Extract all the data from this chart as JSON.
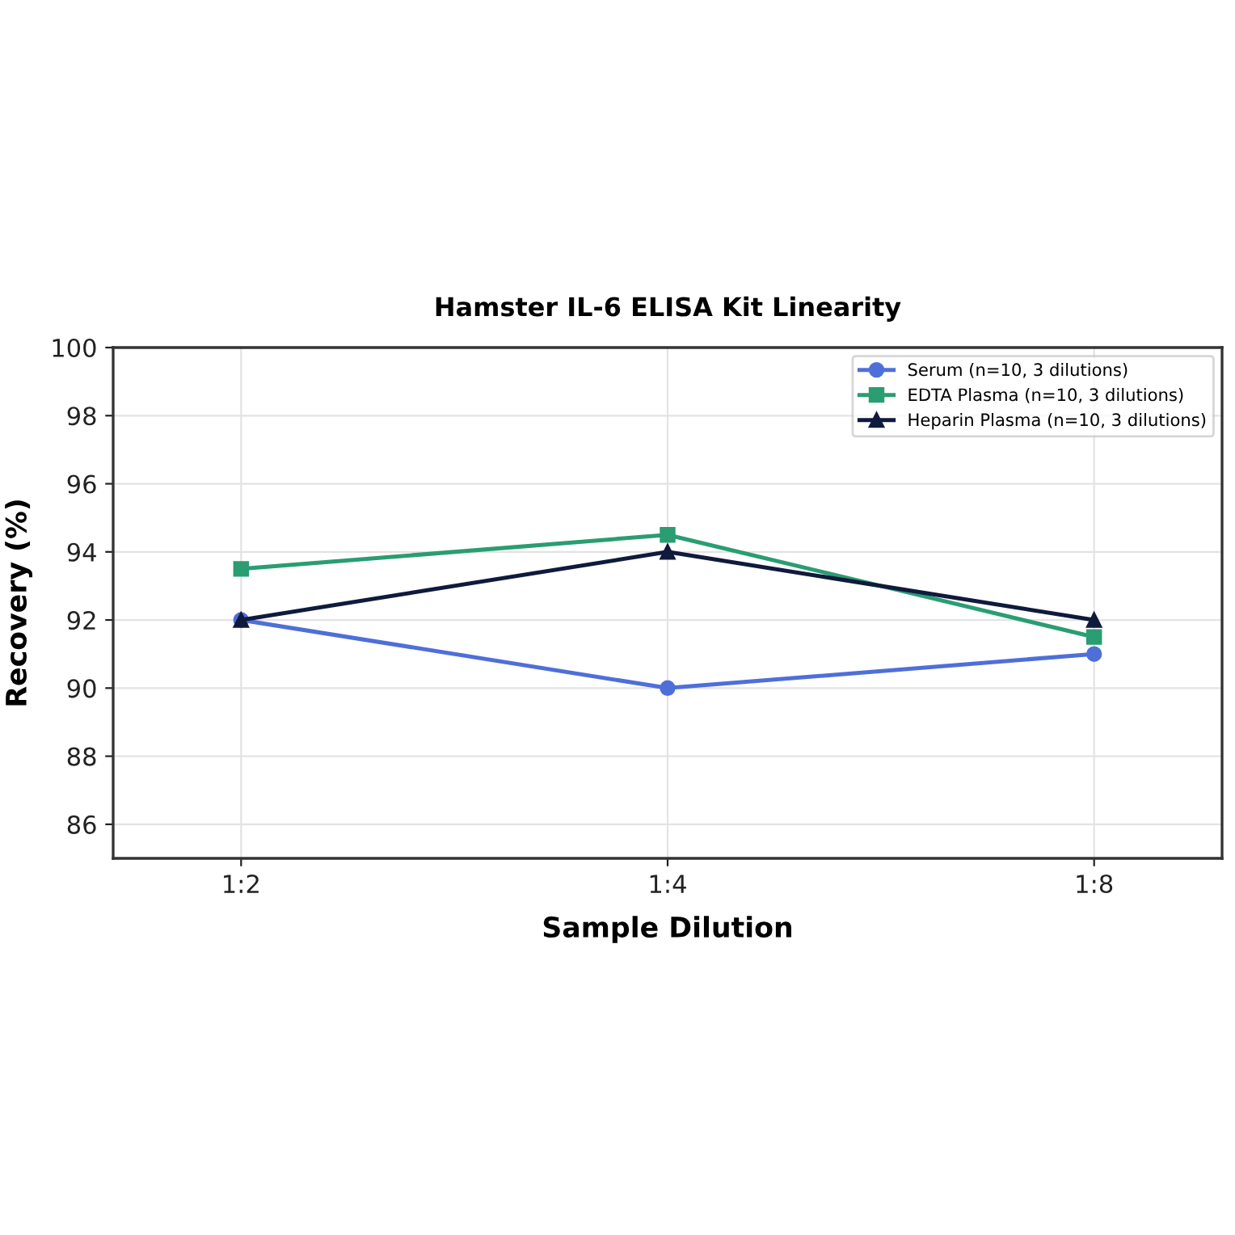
{
  "chart_data": {
    "type": "line",
    "title": "Hamster IL-6 ELISA Kit Linearity",
    "xlabel": "Sample Dilution",
    "ylabel": "Recovery (%)",
    "categories": [
      "1:2",
      "1:4",
      "1:8"
    ],
    "series": [
      {
        "name": "Serum (n=10, 3 dilutions)",
        "color": "#4f6fd8",
        "marker": "circle",
        "values": [
          92,
          90,
          91
        ]
      },
      {
        "name": "EDTA Plasma (n=10, 3 dilutions)",
        "color": "#2a9d72",
        "marker": "square",
        "values": [
          93.5,
          94.5,
          91.5
        ]
      },
      {
        "name": "Heparin Plasma (n=10, 3 dilutions)",
        "color": "#0f1a3c",
        "marker": "triangle",
        "values": [
          92,
          94,
          92
        ]
      }
    ],
    "ylim": [
      85,
      100
    ],
    "yticks": [
      86,
      88,
      90,
      92,
      94,
      96,
      98,
      100
    ],
    "grid": true,
    "legend": "top right",
    "line_style": "solid"
  }
}
